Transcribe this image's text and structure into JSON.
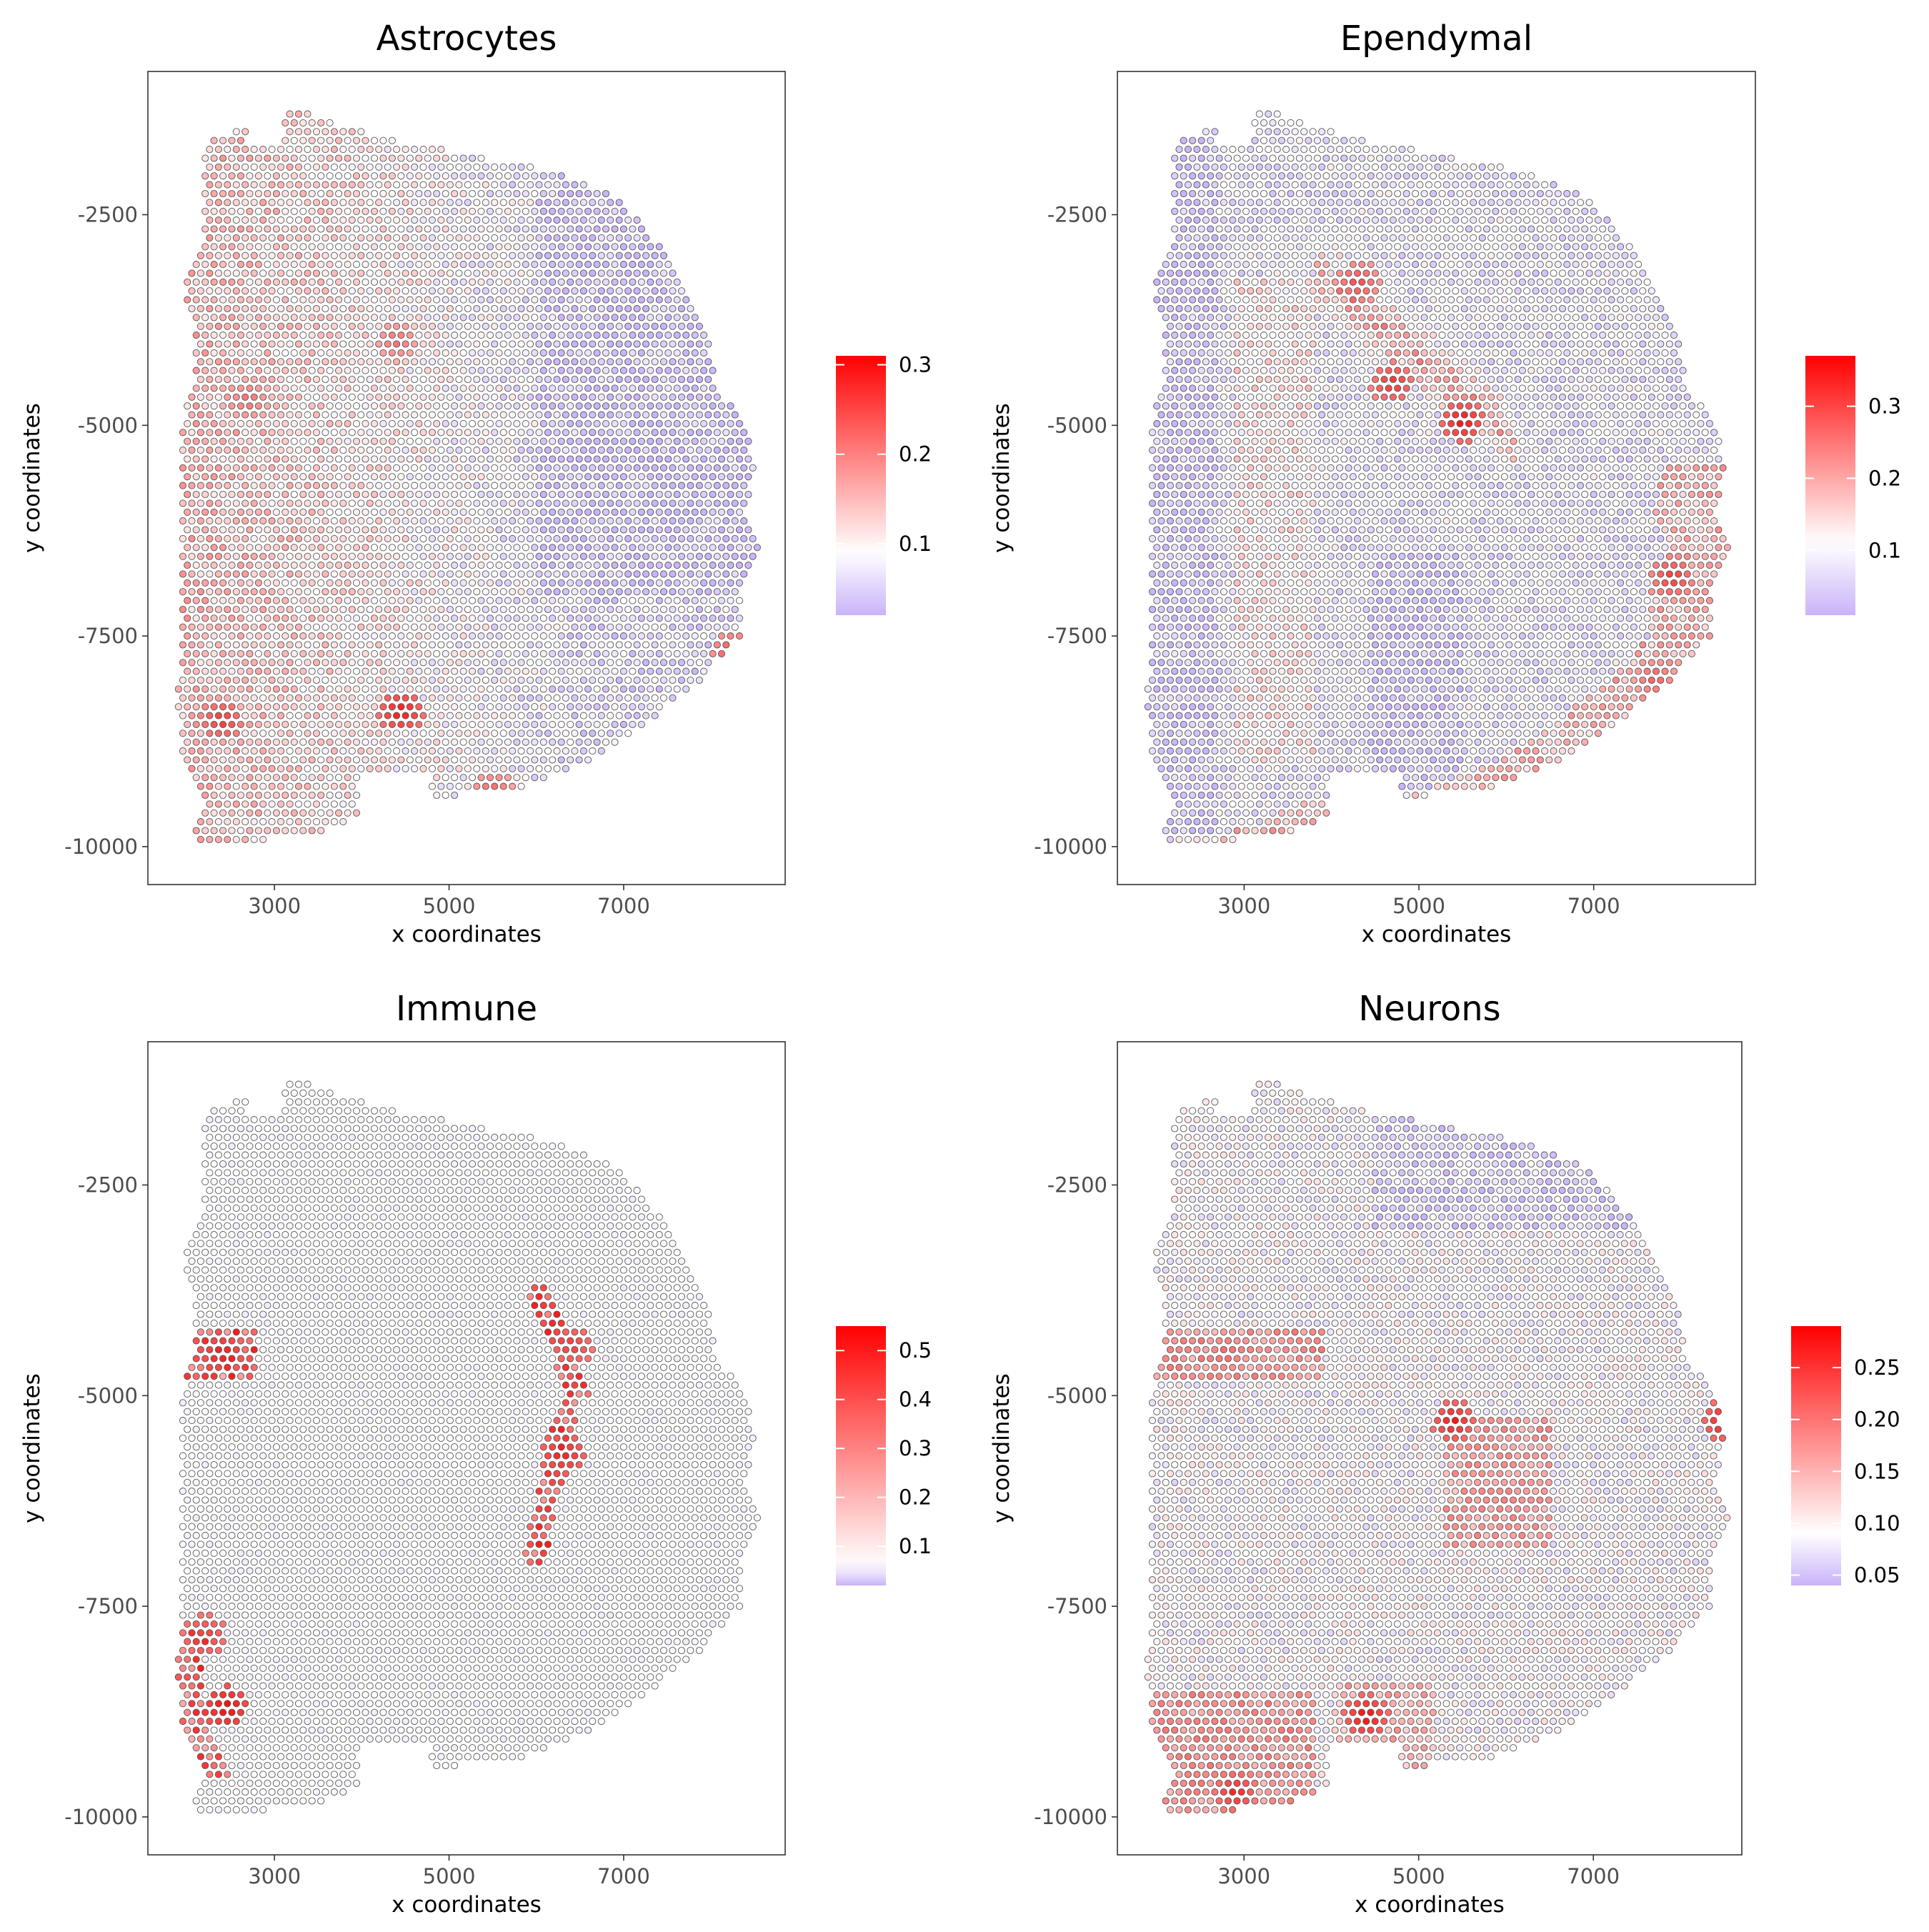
{
  "colors": {
    "low": "#c9b3f9",
    "mid": "#ffffff",
    "high": "#ff0000",
    "point_stroke": "#555555",
    "panel_border": "#333333",
    "tick_text": "#4d4d4d"
  },
  "chart_data": [
    {
      "type": "scatter",
      "title": "Astrocytes",
      "xlabel": "x coordinates",
      "ylabel": "y coordinates",
      "xlim": [
        1550,
        8850
      ],
      "ylim": [
        -10450,
        -800
      ],
      "x_ticks": [
        3000,
        5000,
        7000
      ],
      "x_tick_labels": [
        "3000",
        "5000",
        "7000"
      ],
      "y_ticks": [
        -2500,
        -5000,
        -7500,
        -10000
      ],
      "y_tick_labels": [
        "-2500",
        "-5000",
        "-7500",
        "-10000"
      ],
      "grid": false,
      "legend_position": "right",
      "legend": {
        "min": 0.02,
        "max": 0.31,
        "mid": 0.09,
        "ticks": [
          0.1,
          0.2,
          0.3
        ],
        "tick_labels": [
          "0.1",
          "0.2",
          "0.3"
        ]
      },
      "spot_pattern": "hexagonal spot grid (approx. 102 x-units spacing); high values concentrated in left half and lower-left region near (4400, -8500)",
      "hotspots": [
        {
          "x": 4450,
          "y": -8400,
          "value": 0.3
        },
        {
          "x": 2400,
          "y": -8500,
          "value": 0.27
        },
        {
          "x": 4400,
          "y": -4000,
          "value": 0.22
        },
        {
          "x": 2700,
          "y": -4700,
          "value": 0.22
        },
        {
          "x": 8250,
          "y": -7700,
          "value": 0.25
        },
        {
          "x": 5500,
          "y": -9350,
          "value": 0.23
        }
      ]
    },
    {
      "type": "scatter",
      "title": "Ependymal",
      "xlabel": "x coordinates",
      "ylabel": "y coordinates",
      "xlim": [
        1550,
        8850
      ],
      "ylim": [
        -10450,
        -800
      ],
      "x_ticks": [
        3000,
        5000,
        7000
      ],
      "x_tick_labels": [
        "3000",
        "5000",
        "7000"
      ],
      "y_ticks": [
        -2500,
        -5000,
        -7500,
        -10000
      ],
      "y_tick_labels": [
        "-2500",
        "-5000",
        "-7500",
        "-10000"
      ],
      "grid": false,
      "legend_position": "right",
      "legend": {
        "min": 0.01,
        "max": 0.37,
        "mid": 0.11,
        "ticks": [
          0.1,
          0.2,
          0.3
        ],
        "tick_labels": [
          "0.1",
          "0.2",
          "0.3"
        ]
      },
      "spot_pattern": "hexagonal spot grid; high values along a diagonal band from (4000, -3300) to (5900, -5000) and along right edge (7500-8200, -6000 to -8500)",
      "hotspots": [
        {
          "x": 5500,
          "y": -4950,
          "value": 0.36
        },
        {
          "x": 4700,
          "y": -4500,
          "value": 0.33
        },
        {
          "x": 4300,
          "y": -3300,
          "value": 0.3
        },
        {
          "x": 7900,
          "y": -6800,
          "value": 0.32
        },
        {
          "x": 7700,
          "y": -8000,
          "value": 0.28
        }
      ]
    },
    {
      "type": "scatter",
      "title": "Immune",
      "xlabel": "x coordinates",
      "ylabel": "y coordinates",
      "xlim": [
        1550,
        8850
      ],
      "ylim": [
        -10450,
        -800
      ],
      "x_ticks": [
        3000,
        5000,
        7000
      ],
      "x_tick_labels": [
        "3000",
        "5000",
        "7000"
      ],
      "y_ticks": [
        -2500,
        -5000,
        -7500,
        -10000
      ],
      "y_tick_labels": [
        "-2500",
        "-5000",
        "-7500",
        "-10000"
      ],
      "grid": false,
      "legend_position": "right",
      "legend": {
        "min": 0.02,
        "max": 0.55,
        "mid": 0.06,
        "ticks": [
          0.1,
          0.2,
          0.3,
          0.4,
          0.5
        ],
        "tick_labels": [
          "0.1",
          "0.2",
          "0.3",
          "0.4",
          "0.5"
        ]
      },
      "spot_pattern": "mostly near-zero; high values along a thin curved band from (6100, -3800) down to (5950, -6900), a cluster at (2350-2750, -4500), and along the lower-left edge (2300-2500, -7900 to -9500)",
      "hotspots": [
        {
          "x": 6300,
          "y": -5700,
          "value": 0.5
        },
        {
          "x": 6400,
          "y": -4400,
          "value": 0.45
        },
        {
          "x": 2400,
          "y": -4500,
          "value": 0.52
        },
        {
          "x": 2450,
          "y": -8700,
          "value": 0.55
        },
        {
          "x": 2200,
          "y": -7850,
          "value": 0.45
        }
      ]
    },
    {
      "type": "scatter",
      "title": "Neurons",
      "xlabel": "x coordinates",
      "ylabel": "y coordinates",
      "xlim": [
        1550,
        8700
      ],
      "ylim": [
        -10450,
        -800
      ],
      "x_ticks": [
        3000,
        5000,
        7000
      ],
      "x_tick_labels": [
        "3000",
        "5000",
        "7000"
      ],
      "y_ticks": [
        -2500,
        -5000,
        -7500,
        -10000
      ],
      "y_tick_labels": [
        "-2500",
        "-5000",
        "-7500",
        "-10000"
      ],
      "grid": false,
      "legend_position": "right",
      "legend": {
        "min": 0.04,
        "max": 0.29,
        "mid": 0.09,
        "ticks": [
          0.05,
          0.1,
          0.15,
          0.2,
          0.25
        ],
        "tick_labels": [
          "0.05",
          "0.10",
          "0.15",
          "0.20",
          "0.25"
        ]
      },
      "spot_pattern": "hexagonal spot grid; elevated values in left band (-4500), central region (5500-6300, -5500 to -6500), lower-left corner and cluster near (4400, -9000)",
      "hotspots": [
        {
          "x": 4400,
          "y": -8800,
          "value": 0.29
        },
        {
          "x": 2900,
          "y": -9700,
          "value": 0.27
        },
        {
          "x": 5400,
          "y": -5300,
          "value": 0.28
        },
        {
          "x": 8500,
          "y": -5300,
          "value": 0.28
        },
        {
          "x": 2800,
          "y": -4500,
          "value": 0.22
        },
        {
          "x": 6000,
          "y": -6200,
          "value": 0.2
        }
      ]
    }
  ]
}
